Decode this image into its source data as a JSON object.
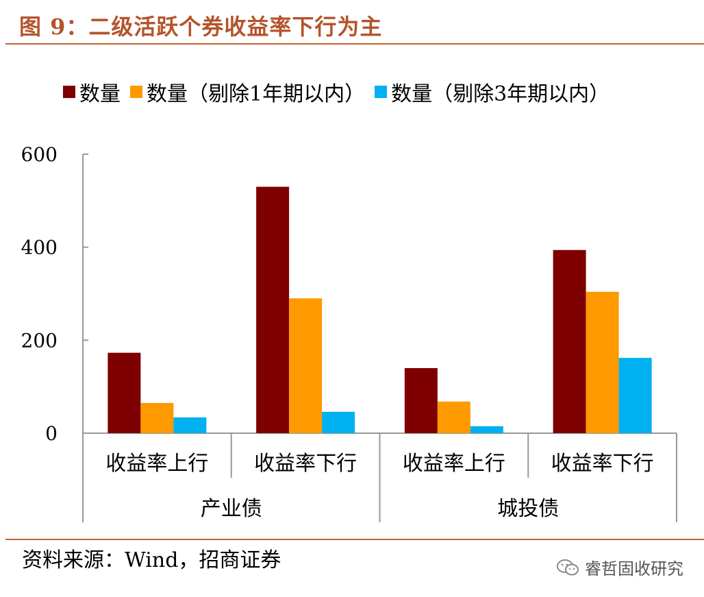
{
  "title": "图 9：二级活跃个券收益率下行为主",
  "source": "资料来源：Wind，招商证券",
  "watermark": "睿哲固收研究",
  "colors": {
    "title": "#b5532b",
    "rule": "#c0602f"
  },
  "chart_data": {
    "type": "bar",
    "title": "",
    "xlabel": "",
    "ylabel": "",
    "ylim": [
      0,
      600
    ],
    "yticks": [
      0,
      200,
      400,
      600
    ],
    "legend_position": "top",
    "grid": false,
    "groups": [
      {
        "label": "产业债",
        "categories": [
          "收益率上行",
          "收益率下行"
        ]
      },
      {
        "label": "城投债",
        "categories": [
          "收益率上行",
          "收益率下行"
        ]
      }
    ],
    "categories": [
      "收益率上行",
      "收益率下行",
      "收益率上行",
      "收益率下行"
    ],
    "series": [
      {
        "name": "数量",
        "color": "#7f0000",
        "values": [
          173,
          530,
          140,
          394
        ]
      },
      {
        "name": "数量（剔除1年期以内）",
        "color": "#ff9900",
        "values": [
          65,
          290,
          68,
          304
        ]
      },
      {
        "name": "数量（剔除3年期以内）",
        "color": "#00b0f0",
        "values": [
          34,
          46,
          15,
          162
        ]
      }
    ]
  }
}
